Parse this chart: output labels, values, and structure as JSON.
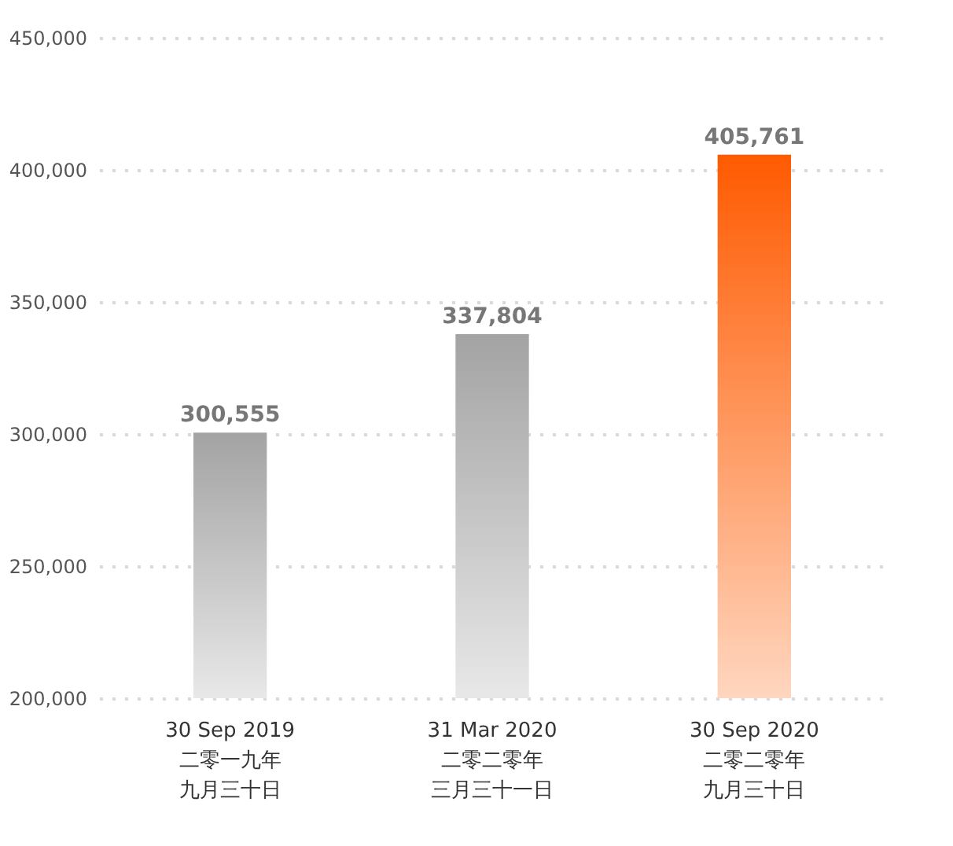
{
  "chart_data": {
    "type": "bar",
    "categories": [
      "30 Sep 2019\n二零一九年九月三十日",
      "31 Mar 2020\n二零二零年三月三十一日",
      "30 Sep 2020\n二零二零年九月三十日"
    ],
    "values": [
      300555,
      337804,
      405761
    ],
    "value_labels": [
      "300,555",
      "337,804",
      "405,761"
    ],
    "colors": [
      "#a3a3a3",
      "#a3a3a3",
      "#ff5a00"
    ],
    "ylim": [
      200000,
      450000
    ],
    "yticks": [
      {
        "value": 200000,
        "label": "200,000"
      },
      {
        "value": 250000,
        "label": "250,000"
      },
      {
        "value": 300000,
        "label": "300,000"
      },
      {
        "value": 350000,
        "label": "350,000"
      },
      {
        "value": 400000,
        "label": "400,000"
      },
      {
        "value": 450000,
        "label": "450,000"
      }
    ],
    "grid": "y"
  }
}
